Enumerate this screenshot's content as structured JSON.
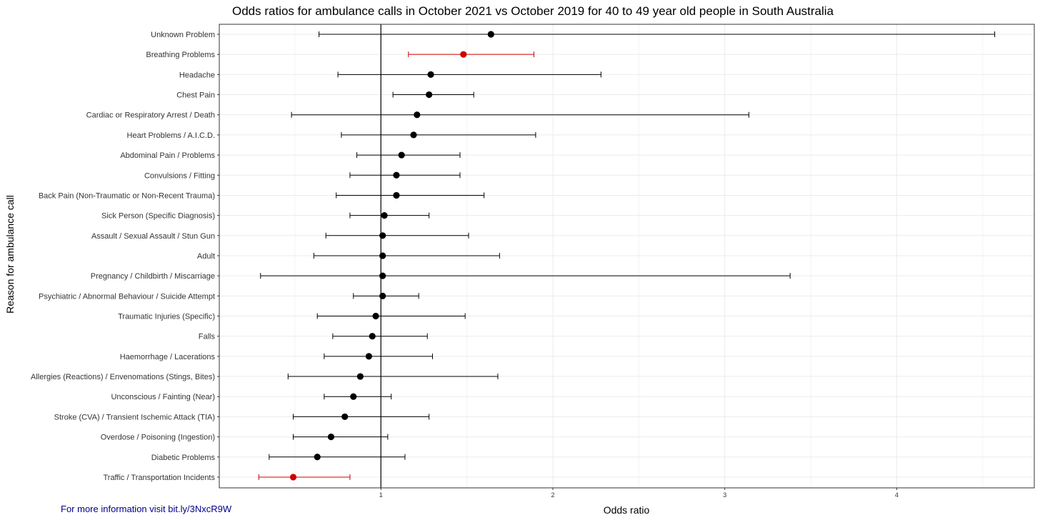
{
  "chart_data": {
    "type": "scatter",
    "title": "Odds ratios for ambulance calls in October 2021 vs October 2019 for 40 to 49 year old people in South Australia",
    "xlabel": "Odds ratio",
    "ylabel": "Reason for ambulance call",
    "xlim": [
      0.06,
      4.8
    ],
    "x_ticks": [
      1,
      2,
      3,
      4
    ],
    "grid": true,
    "reference_line_x": 1,
    "point_colors": {
      "normal": "#000000",
      "highlight": "#cc0000"
    },
    "series": [
      {
        "rows": [
          {
            "category": "Unknown Problem",
            "estimate": 1.64,
            "lower": 0.64,
            "upper": 4.57,
            "highlight": false
          },
          {
            "category": "Breathing Problems",
            "estimate": 1.48,
            "lower": 1.16,
            "upper": 1.89,
            "highlight": true
          },
          {
            "category": "Headache",
            "estimate": 1.29,
            "lower": 0.75,
            "upper": 2.28,
            "highlight": false
          },
          {
            "category": "Chest Pain",
            "estimate": 1.28,
            "lower": 1.07,
            "upper": 1.54,
            "highlight": false
          },
          {
            "category": "Cardiac or Respiratory Arrest / Death",
            "estimate": 1.21,
            "lower": 0.48,
            "upper": 3.14,
            "highlight": false
          },
          {
            "category": "Heart Problems / A.I.C.D.",
            "estimate": 1.19,
            "lower": 0.77,
            "upper": 1.9,
            "highlight": false
          },
          {
            "category": "Abdominal Pain / Problems",
            "estimate": 1.12,
            "lower": 0.86,
            "upper": 1.46,
            "highlight": false
          },
          {
            "category": "Convulsions / Fitting",
            "estimate": 1.09,
            "lower": 0.82,
            "upper": 1.46,
            "highlight": false
          },
          {
            "category": "Back Pain (Non-Traumatic or Non-Recent Trauma)",
            "estimate": 1.09,
            "lower": 0.74,
            "upper": 1.6,
            "highlight": false
          },
          {
            "category": "Sick Person (Specific Diagnosis)",
            "estimate": 1.02,
            "lower": 0.82,
            "upper": 1.28,
            "highlight": false
          },
          {
            "category": "Assault / Sexual Assault / Stun Gun",
            "estimate": 1.01,
            "lower": 0.68,
            "upper": 1.51,
            "highlight": false
          },
          {
            "category": "Adult",
            "estimate": 1.01,
            "lower": 0.61,
            "upper": 1.69,
            "highlight": false
          },
          {
            "category": "Pregnancy / Childbirth / Miscarriage",
            "estimate": 1.01,
            "lower": 0.3,
            "upper": 3.38,
            "highlight": false
          },
          {
            "category": "Psychiatric / Abnormal Behaviour / Suicide Attempt",
            "estimate": 1.01,
            "lower": 0.84,
            "upper": 1.22,
            "highlight": false
          },
          {
            "category": "Traumatic Injuries (Specific)",
            "estimate": 0.97,
            "lower": 0.63,
            "upper": 1.49,
            "highlight": false
          },
          {
            "category": "Falls",
            "estimate": 0.95,
            "lower": 0.72,
            "upper": 1.27,
            "highlight": false
          },
          {
            "category": "Haemorrhage / Lacerations",
            "estimate": 0.93,
            "lower": 0.67,
            "upper": 1.3,
            "highlight": false
          },
          {
            "category": "Allergies (Reactions) / Envenomations (Stings, Bites)",
            "estimate": 0.88,
            "lower": 0.46,
            "upper": 1.68,
            "highlight": false
          },
          {
            "category": "Unconscious / Fainting (Near)",
            "estimate": 0.84,
            "lower": 0.67,
            "upper": 1.06,
            "highlight": false
          },
          {
            "category": "Stroke (CVA) / Transient Ischemic Attack (TIA)",
            "estimate": 0.79,
            "lower": 0.49,
            "upper": 1.28,
            "highlight": false
          },
          {
            "category": "Overdose / Poisoning (Ingestion)",
            "estimate": 0.71,
            "lower": 0.49,
            "upper": 1.04,
            "highlight": false
          },
          {
            "category": "Diabetic Problems",
            "estimate": 0.63,
            "lower": 0.35,
            "upper": 1.14,
            "highlight": false
          },
          {
            "category": "Traffic / Transportation Incidents",
            "estimate": 0.49,
            "lower": 0.29,
            "upper": 0.82,
            "highlight": true
          }
        ]
      }
    ]
  },
  "footer": {
    "note": "For more information visit bit.ly/3NxcR9W"
  }
}
